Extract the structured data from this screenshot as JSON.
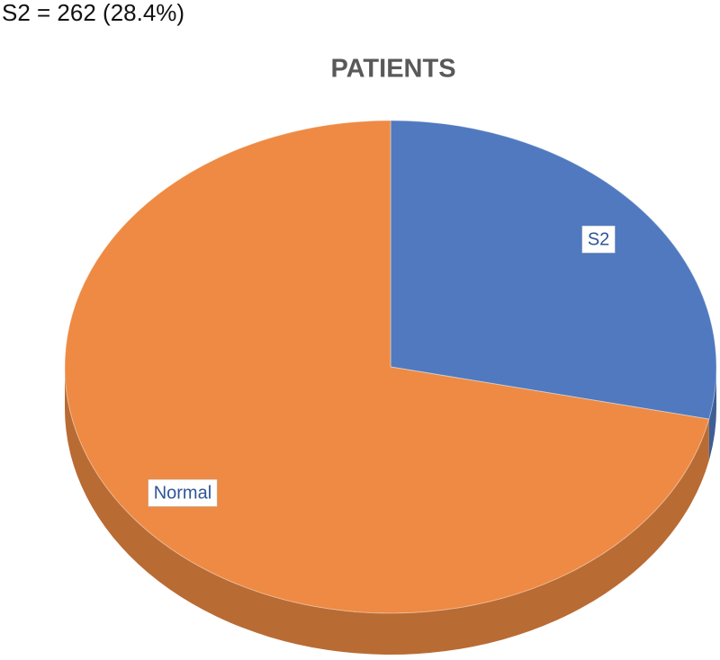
{
  "chart_data": {
    "type": "pie",
    "title": "PATIENTS",
    "annotation": "S2 = 262 (28.4%)",
    "categories": [
      "S2",
      "Normal"
    ],
    "values": [
      28.4,
      71.6
    ],
    "colors": [
      "#5079bf",
      "#ee8a43"
    ]
  }
}
